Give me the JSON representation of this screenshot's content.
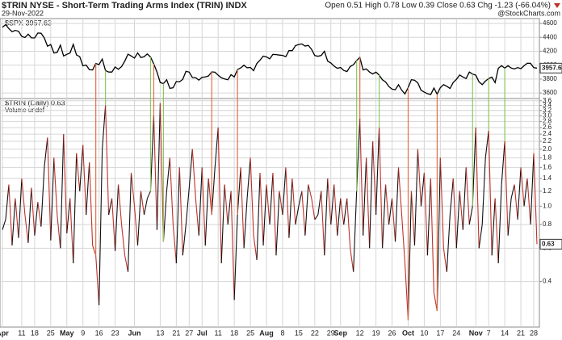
{
  "header": {
    "title": "$TRIN NYSE - Short-Term Trading Arms Index (TRIN) INDX",
    "date": "29-Nov-2022",
    "quote": "Open 0.51 High 0.78 Low 0.39 Close 0.63 Chg -1.23 (-66.04%)",
    "source": "@StockCharts.com"
  },
  "signals": [
    {
      "color": "#e0704a",
      "x": [
        29,
        47,
        65,
        73,
        111,
        126,
        135
      ]
    },
    {
      "color": "#8cc860",
      "x": [
        32,
        46,
        50,
        110,
        117,
        146,
        151,
        156
      ]
    }
  ],
  "chart_data": [
    {
      "type": "line",
      "label": "$SPX 3957.63",
      "xlim": [
        0,
        166
      ],
      "ylim": [
        3520,
        4670
      ],
      "yticks": [
        3600,
        3800,
        4000,
        4200,
        4400,
        4600
      ],
      "grid": true,
      "series": [
        {
          "color": "#000000",
          "values": [
            4545,
            4583,
            4525,
            4481,
            4500,
            4488,
            4413,
            4397,
            4446,
            4393,
            4391,
            4462,
            4459,
            4393,
            4272,
            4296,
            4175,
            4183,
            4288,
            4132,
            4155,
            4175,
            4300,
            4147,
            4123,
            3991,
            4001,
            3935,
            3930,
            4024,
            4008,
            4088,
            3923,
            3901,
            3901,
            3974,
            3941,
            3979,
            4058,
            4158,
            4132,
            4101,
            4176,
            4109,
            4121,
            4161,
            4116,
            4018,
            3901,
            3750,
            3735,
            3790,
            3667,
            3675,
            3765,
            3760,
            3796,
            3912,
            3900,
            3822,
            3819,
            3785,
            3825,
            3831,
            3845,
            3903,
            3899,
            3855,
            3819,
            3801,
            3790,
            3863,
            3831,
            3937,
            3960,
            3999,
            3962,
            3967,
            3921,
            4024,
            4072,
            4130,
            4119,
            4091,
            4155,
            4152,
            4145,
            4140,
            4122,
            4210,
            4208,
            4280,
            4297,
            4305,
            4275,
            4284,
            4228,
            4138,
            4128,
            4140,
            4200,
            4058,
            4031,
            3986,
            3955,
            3966,
            3924,
            3908,
            3980,
            4006,
            4067,
            4110,
            3932,
            3946,
            3901,
            3873,
            3900,
            3856,
            3790,
            3758,
            3693,
            3655,
            3647,
            3719,
            3640,
            3586,
            3678,
            3791,
            3783,
            3745,
            3640,
            3612,
            3589,
            3577,
            3670,
            3583,
            3677,
            3720,
            3696,
            3665,
            3752,
            3797,
            3859,
            3830,
            3807,
            3901,
            3872,
            3856,
            3760,
            3720,
            3771,
            3807,
            3828,
            3749,
            3956,
            3993,
            3957,
            3992,
            3958,
            3946,
            3965,
            3950,
            3992,
            4028,
            4026,
            3964,
            3957.63
          ]
        }
      ]
    },
    {
      "type": "line",
      "label": "$TRIN (Daily) 0.63",
      "sublabel": "Volume undef",
      "log_scale": true,
      "grid": true,
      "xlim": [
        0,
        166
      ],
      "ylim": [
        0.23,
        3.7
      ],
      "yticks": [
        0.4,
        0.6,
        0.8,
        {
          "value": 1,
          "label": "1.0"
        },
        1.2,
        1.4,
        1.6,
        1.8,
        {
          "value": 2,
          "label": "2.0"
        },
        2.2,
        2.4,
        2.6,
        2.8,
        {
          "value": 3,
          "label": "3.0"
        },
        3.2,
        3.4,
        3.6
      ],
      "xticks": [
        {
          "value": 0,
          "label": "Apr"
        },
        {
          "value": 6,
          "label": "11"
        },
        {
          "value": 10,
          "label": "18"
        },
        {
          "value": 15,
          "label": "25"
        },
        {
          "value": 20,
          "label": "May"
        },
        {
          "value": 25,
          "label": "9"
        },
        {
          "value": 30,
          "label": "16"
        },
        {
          "value": 35,
          "label": "23"
        },
        {
          "value": 41,
          "label": "Jun"
        },
        {
          "value": 49,
          "label": "13"
        },
        {
          "value": 54,
          "label": "21"
        },
        {
          "value": 58,
          "label": "27"
        },
        {
          "value": 62,
          "label": "Jul"
        },
        {
          "value": 67,
          "label": "11"
        },
        {
          "value": 72,
          "label": "18"
        },
        {
          "value": 77,
          "label": "25"
        },
        {
          "value": 82,
          "label": "Aug"
        },
        {
          "value": 87,
          "label": "8"
        },
        {
          "value": 92,
          "label": "15"
        },
        {
          "value": 97,
          "label": "22"
        },
        {
          "value": 102,
          "label": "29"
        },
        {
          "value": 105,
          "label": "Sep"
        },
        {
          "value": 111,
          "label": "12"
        },
        {
          "value": 116,
          "label": "19"
        },
        {
          "value": 121,
          "label": "26"
        },
        {
          "value": 126,
          "label": "Oct"
        },
        {
          "value": 131,
          "label": "10"
        },
        {
          "value": 136,
          "label": "17"
        },
        {
          "value": 141,
          "label": "24"
        },
        {
          "value": 147,
          "label": "Nov"
        },
        {
          "value": 151,
          "label": "7"
        },
        {
          "value": 156,
          "label": "14"
        },
        {
          "value": 161,
          "label": "21"
        },
        {
          "value": 165,
          "label": "28"
        }
      ],
      "up_color": "#111111",
      "down_color": "#c0302a",
      "series": [
        {
          "values": [
            0.75,
            0.85,
            1.3,
            0.62,
            1.1,
            0.68,
            1.4,
            0.9,
            0.64,
            1.25,
            0.7,
            1.05,
            0.78,
            1.6,
            2.3,
            0.66,
            1.8,
            0.9,
            0.6,
            2.4,
            0.72,
            1.1,
            0.5,
            1.9,
            1.2,
            2.1,
            0.9,
            1.7,
            0.62,
            0.55,
            0.3,
            2.0,
            3.4,
            0.9,
            1.1,
            0.58,
            1.3,
            0.8,
            0.55,
            0.45,
            1.5,
            1.0,
            0.62,
            1.2,
            0.9,
            1.1,
            1.2,
            3.0,
            0.75,
            3.5,
            0.65,
            1.2,
            1.8,
            0.8,
            0.5,
            1.6,
            0.55,
            0.8,
            1.25,
            2.0,
            1.1,
            0.7,
            1.6,
            0.62,
            1.4,
            0.9,
            1.6,
            2.6,
            0.5,
            1.3,
            0.8,
            1.2,
            0.32,
            0.9,
            1.6,
            0.6,
            1.1,
            1.8,
            0.7,
            0.52,
            1.5,
            0.62,
            1.3,
            0.8,
            1.5,
            0.55,
            1.2,
            0.9,
            1.6,
            0.68,
            1.4,
            0.8,
            1.0,
            1.2,
            0.7,
            1.3,
            1.1,
            0.85,
            0.9,
            1.2,
            0.55,
            1.4,
            0.8,
            1.3,
            0.7,
            1.1,
            0.8,
            1.1,
            0.6,
            0.45,
            1.2,
            2.9,
            0.7,
            1.8,
            0.6,
            2.2,
            0.9,
            2.6,
            0.6,
            1.3,
            0.8,
            1.1,
            0.65,
            1.6,
            0.9,
            0.5,
            0.25,
            1.2,
            0.62,
            2.0,
            1.0,
            1.5,
            0.55,
            1.4,
            0.35,
            0.28,
            1.8,
            0.6,
            0.45,
            0.9,
            1.4,
            0.6,
            1.2,
            0.75,
            1.6,
            0.8,
            1.0,
            2.6,
            0.6,
            0.8,
            1.8,
            2.5,
            0.55,
            1.1,
            0.5,
            1.3,
            2.2,
            0.7,
            1.1,
            1.3,
            0.85,
            1.6,
            1.0,
            1.4,
            0.8,
            1.9,
            0.63
          ]
        }
      ]
    }
  ]
}
